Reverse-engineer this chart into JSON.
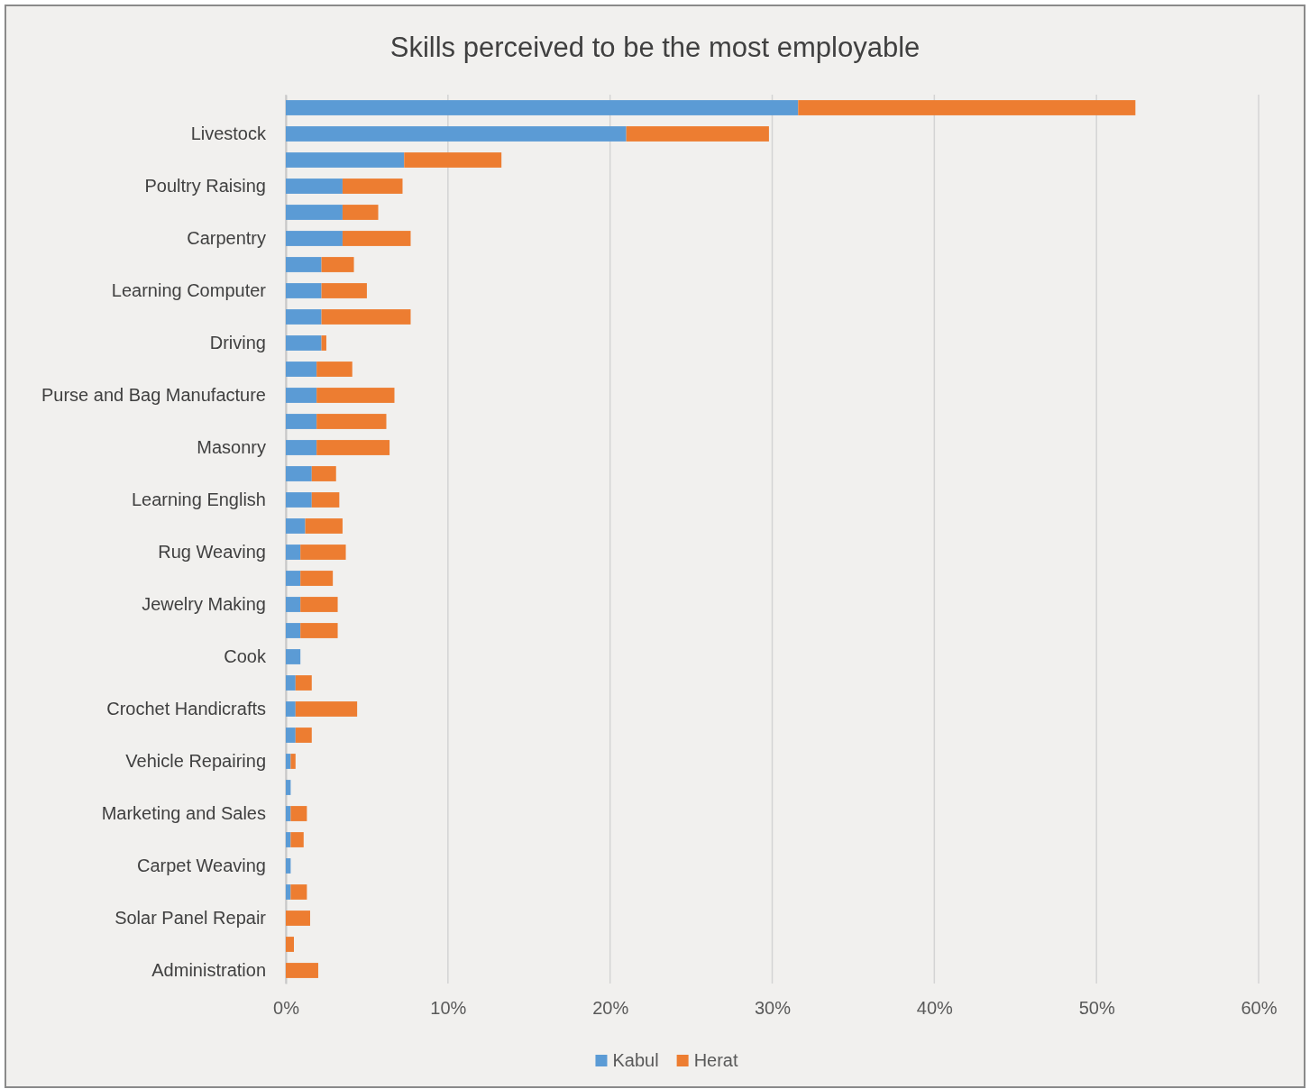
{
  "chart_data": {
    "type": "bar",
    "orientation": "horizontal",
    "stacked": true,
    "title": "Skills perceived to be the most employable",
    "categories": [
      null,
      "Livestock",
      null,
      "Poultry Raising",
      null,
      "Carpentry",
      null,
      "Learning Computer",
      null,
      "Driving",
      null,
      "Purse and Bag Manufacture",
      null,
      "Masonry",
      null,
      "Learning English",
      null,
      "Rug Weaving",
      null,
      "Jewelry Making",
      null,
      "Cook",
      null,
      "Crochet Handicrafts",
      null,
      "Vehicle Repairing",
      null,
      "Marketing and Sales",
      null,
      "Carpet Weaving",
      null,
      "Solar Panel Repair",
      null,
      "Administration"
    ],
    "series": [
      {
        "name": "Kabul",
        "color": "#5b9bd5",
        "values": [
          31.6,
          21.0,
          7.3,
          3.5,
          3.5,
          3.5,
          2.2,
          2.2,
          2.2,
          2.2,
          1.9,
          1.9,
          1.9,
          1.9,
          1.6,
          1.6,
          1.2,
          0.9,
          0.9,
          0.9,
          0.9,
          0.9,
          0.6,
          0.6,
          0.6,
          0.3,
          0.3,
          0.3,
          0.3,
          0.3,
          0.3,
          0,
          0,
          0
        ]
      },
      {
        "name": "Herat",
        "color": "#ed7d31",
        "values": [
          20.8,
          8.8,
          6.0,
          3.7,
          2.2,
          4.2,
          2.0,
          2.8,
          5.5,
          0.3,
          2.2,
          4.8,
          4.3,
          4.5,
          1.5,
          1.7,
          2.3,
          2.8,
          2.0,
          2.3,
          2.3,
          0,
          1.0,
          3.8,
          1.0,
          0.3,
          0,
          1.0,
          0.8,
          0,
          1.0,
          1.5,
          0.5,
          2.0
        ]
      }
    ],
    "xlim": [
      0,
      60
    ],
    "xticks": [
      {
        "value": 0,
        "label": "0%"
      },
      {
        "value": 10,
        "label": "10%"
      },
      {
        "value": 20,
        "label": "20%"
      },
      {
        "value": 30,
        "label": "30%"
      },
      {
        "value": 40,
        "label": "40%"
      },
      {
        "value": 50,
        "label": "50%"
      },
      {
        "value": 60,
        "label": "60%"
      }
    ],
    "grid": "x",
    "legend": "bottom"
  }
}
